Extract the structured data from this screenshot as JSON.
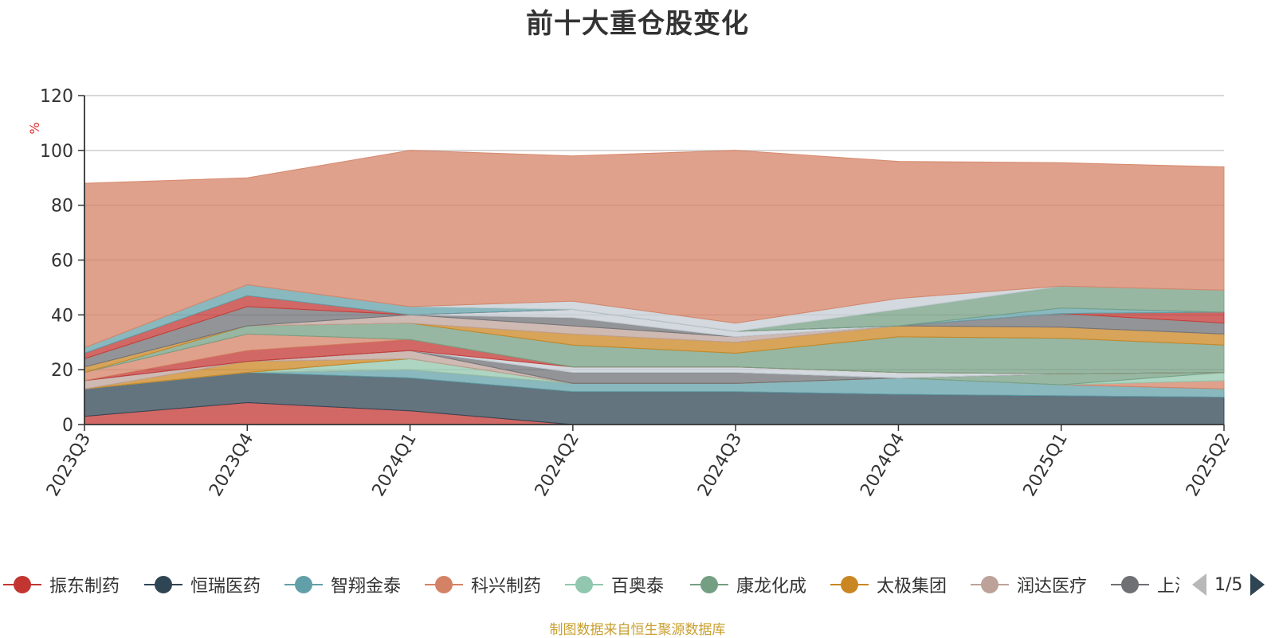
{
  "chart_data": {
    "type": "area",
    "stacked": true,
    "title": "前十大重仓股变化",
    "ylabel": "%",
    "ylim": [
      0,
      120
    ],
    "yticks": [
      0,
      20,
      40,
      60,
      80,
      100,
      120
    ],
    "categories": [
      "2023Q3",
      "2023Q4",
      "2024Q1",
      "2024Q2",
      "2024Q3",
      "2024Q4",
      "2025Q1",
      "2025Q2"
    ],
    "grid": true,
    "legend_position": "bottom",
    "series": [
      {
        "name": "振东制药",
        "color": "#c23531",
        "values": [
          3,
          8,
          5,
          0,
          0,
          0,
          0,
          0
        ]
      },
      {
        "name": "恒瑞医药",
        "color": "#2f4554",
        "values": [
          10,
          11,
          12,
          12,
          12,
          11,
          10.5,
          10
        ]
      },
      {
        "name": "智翔金泰",
        "color": "#61a0a8",
        "values": [
          0,
          0,
          3,
          3,
          3,
          6,
          4,
          3
        ]
      },
      {
        "name": "科兴制药",
        "color": "#d48265",
        "values": [
          0,
          0,
          0,
          0,
          0,
          0,
          0,
          3
        ]
      },
      {
        "name": "百奥泰",
        "color": "#91c7ae",
        "values": [
          0,
          0,
          4,
          0,
          0,
          0,
          0,
          3
        ]
      },
      {
        "name": "康龙化成",
        "color": "#749f83",
        "values": [
          0,
          0,
          0,
          0,
          0,
          0,
          4,
          0
        ]
      },
      {
        "name": "太极集团",
        "color": "#ca8622",
        "values": [
          0,
          4,
          0,
          0,
          0,
          0,
          0,
          0
        ]
      },
      {
        "name": "润达医疗",
        "color": "#bda29a",
        "values": [
          3,
          0,
          3,
          0,
          0,
          0,
          0,
          0
        ]
      },
      {
        "name": "上海医药",
        "color": "#6e7074",
        "values": [
          0,
          0,
          0,
          4,
          4,
          0,
          0,
          0
        ]
      },
      {
        "name": "",
        "color": "#546570",
        "values": [
          0,
          0,
          0,
          0,
          0,
          0,
          0,
          0
        ]
      },
      {
        "name": "",
        "color": "#c4ccd3",
        "values": [
          0,
          0,
          0,
          2,
          2,
          2,
          0,
          0
        ]
      },
      {
        "name": "",
        "color": "#c23531",
        "values": [
          0,
          4,
          4,
          0,
          0,
          0,
          0,
          0
        ]
      },
      {
        "name": "",
        "color": "#d48265",
        "values": [
          3,
          6,
          0,
          0,
          0,
          0,
          0,
          0
        ]
      },
      {
        "name": "",
        "color": "#749f83",
        "values": [
          0,
          3,
          6,
          8,
          5,
          13,
          13,
          10
        ]
      },
      {
        "name": "",
        "color": "#ca8622",
        "values": [
          2,
          0,
          0,
          4,
          4,
          4,
          4,
          4
        ]
      },
      {
        "name": "",
        "color": "#bda29a",
        "values": [
          0,
          0,
          3,
          3,
          2,
          0,
          0,
          0
        ]
      },
      {
        "name": "",
        "color": "#6e7074",
        "values": [
          3,
          7,
          0,
          3,
          0,
          0,
          5,
          4
        ]
      },
      {
        "name": "",
        "color": "#c4ccd3",
        "values": [
          0,
          0,
          0,
          3,
          2,
          0,
          0,
          0
        ]
      },
      {
        "name": "",
        "color": "#c23531",
        "values": [
          2,
          4,
          0,
          0,
          0,
          0,
          0,
          4
        ]
      },
      {
        "name": "",
        "color": "#61a0a8",
        "values": [
          2,
          4,
          3,
          0,
          0,
          0,
          2,
          0
        ]
      },
      {
        "name": "",
        "color": "#749f83",
        "values": [
          0,
          0,
          0,
          0,
          0,
          6,
          8,
          8
        ]
      },
      {
        "name": "",
        "color": "#c4ccd3",
        "values": [
          0,
          0,
          0,
          3,
          3,
          4,
          0,
          0
        ]
      },
      {
        "name": "",
        "color": "#d48265",
        "values": [
          60,
          39,
          57,
          53,
          63,
          50,
          45,
          45
        ]
      }
    ]
  },
  "legend": {
    "items": [
      {
        "name": "振东制药",
        "color": "#c23531"
      },
      {
        "name": "恒瑞医药",
        "color": "#2f4554"
      },
      {
        "name": "智翔金泰",
        "color": "#61a0a8"
      },
      {
        "name": "科兴制药",
        "color": "#d48265"
      },
      {
        "name": "百奥泰",
        "color": "#91c7ae"
      },
      {
        "name": "康龙化成",
        "color": "#749f83"
      },
      {
        "name": "太极集团",
        "color": "#ca8622"
      },
      {
        "name": "润达医疗",
        "color": "#bda29a"
      },
      {
        "name": "上海医药",
        "color": "#6e7074"
      }
    ],
    "page_indicator": "1/5"
  },
  "source_note": "制图数据来自恒生聚源数据库"
}
